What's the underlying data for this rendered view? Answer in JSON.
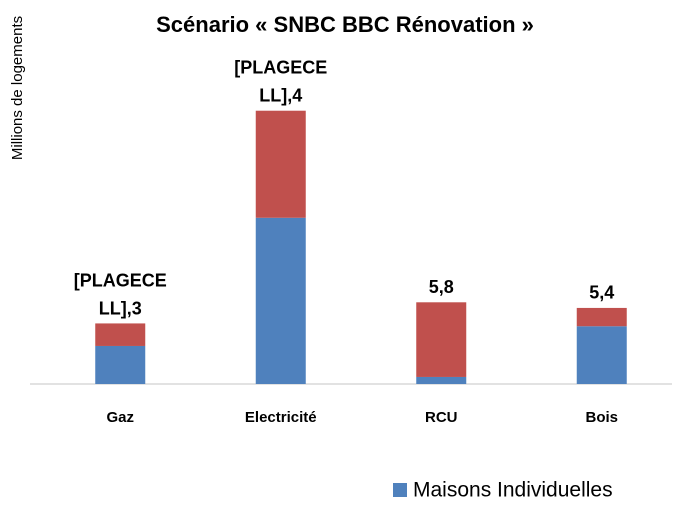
{
  "chart_data": {
    "type": "stacked_bar",
    "title": "Scénario « SNBC BBC Rénovation »",
    "y_label": "Millions de logements",
    "categories": [
      "Gaz",
      "Electricité",
      "RCU",
      "Bois"
    ],
    "series": [
      {
        "name": "Maisons Individuelles",
        "color": "#4f81bd",
        "values": [
          2.7,
          11.8,
          0.5,
          4.1
        ]
      },
      {
        "color": "#c0504d",
        "values": [
          1.6,
          7.6,
          5.3,
          1.3
        ]
      }
    ],
    "total_labels": [
      "[PLAGECELL],3",
      "[PLAGECELL],4",
      "5,8",
      "5,4"
    ],
    "ylim": [
      0,
      23
    ],
    "legend": "bottom-right"
  }
}
